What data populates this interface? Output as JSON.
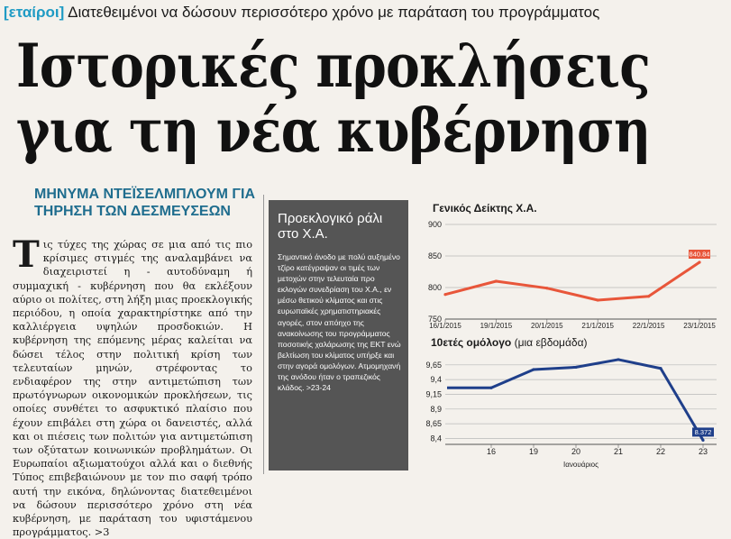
{
  "kicker": {
    "tag": "[εταίροι]",
    "text": " Διατεθειμένοι να δώσουν περισσότερο χρόνο με παράταση του προγράμματος"
  },
  "headline": {
    "line1": "Ιστορικές προκλήσεις",
    "line2": "για τη νέα κυβέρνηση"
  },
  "subhead": "ΜΗΝΥΜΑ ΝΤΕΪΣΕΛΜΠΛΟΥΜ ΓΙΑ ΤΗΡΗΣΗ ΤΩΝ ΔΕΣΜΕΥΣΕΩΝ",
  "article": {
    "dropcap": "Τ",
    "body": "ις τύχες της χώρας σε μια από τις πιο κρίσιμες στιγμές της αναλαμβάνει να διαχειριστεί η - αυτοδύναμη ή συμμαχική - κυβέρνηση που θα εκλέξουν αύριο οι πολίτες, στη λήξη μιας προεκλογικής περιόδου, η οποία χαρακτηρίστηκε από την καλλιέργεια υψηλών προσδοκιών. Η κυβέρνηση της επόμενης μέρας καλείται να δώσει τέλος στην πολιτική κρίση των τελευταίων μηνών, στρέφοντας το ενδιαφέρον της στην αντιμετώπιση των πρωτόγνωρων οικονομικών προκλήσεων, τις οποίες συνθέτει το ασφυκτικό πλαίσιο που έχουν επιβάλει στη χώρα οι δανειστές, αλλά και οι πιέσεις των πολιτών για αντιμετώπιση των οξύτατων κοινωνικών προβλημάτων. Οι Ευρωπαίοι αξιωματούχοι αλλά και ο διεθνής Τύπος επιβεβαιώνουν με τον πιο σαφή τρόπο αυτή την εικόνα, δηλώνοντας διατεθειμένοι να δώσουν περισσότερο χρόνο στη νέα κυβέρνηση, με παράταση του υφιστάμενου προγράμματος. >3"
  },
  "sidebar": {
    "title": "Προεκλογικό ράλι στο Χ.Α.",
    "body": "Σημαντικό άνοδο με πολύ αυξημένο τζίρο κατέγραψαν οι τιμές των μετοχών στην τελευταία προ εκλογών συνεδρίαση του Χ.Α., εν μέσω θετικού κλίματος και στις ευρωπαϊκές χρηματιστηριακές αγορές, στον απόηχο της ανακοίνωσης του προγράμματος ποσοτικής χαλάρωσης της ΕΚΤ ενώ βελτίωση του κλίματος υπήρξε και στην αγορά ομολόγων. Ατμομηχανή της ανόδου ήταν ο τραπεζικός κλάδος. >23-24"
  },
  "chart_data": [
    {
      "type": "line",
      "title": "Γενικός Δείκτης Χ.Α.",
      "categories": [
        "16/1/2015",
        "19/1/2015",
        "20/1/2015",
        "21/1/2015",
        "22/1/2015",
        "23/1/2015"
      ],
      "series": [
        {
          "values": [
            789,
            810,
            799,
            780,
            786,
            840
          ]
        }
      ],
      "end_label": "840.84",
      "ylim": [
        750,
        900
      ],
      "yticks": [
        "900",
        "850",
        "800",
        "750"
      ],
      "line_color": "#e8563a",
      "grid": true
    },
    {
      "type": "line",
      "title": "10ετές ομόλογο",
      "subtitle": "(μια εβδομάδα)",
      "xlabel": "Ιανουάριος",
      "categories": [
        "16",
        "19",
        "20",
        "21",
        "22",
        "23"
      ],
      "series": [
        {
          "values": [
            9.26,
            9.57,
            9.61,
            9.74,
            9.59,
            8.37
          ]
        }
      ],
      "leading_value": 9.26,
      "end_label": "8.372",
      "ylim": [
        8.3,
        9.8
      ],
      "yticks": [
        "9,65",
        "9,4",
        "9,15",
        "8,9",
        "8,65",
        "8,4"
      ],
      "line_color": "#1f3f8a",
      "grid": true
    }
  ]
}
